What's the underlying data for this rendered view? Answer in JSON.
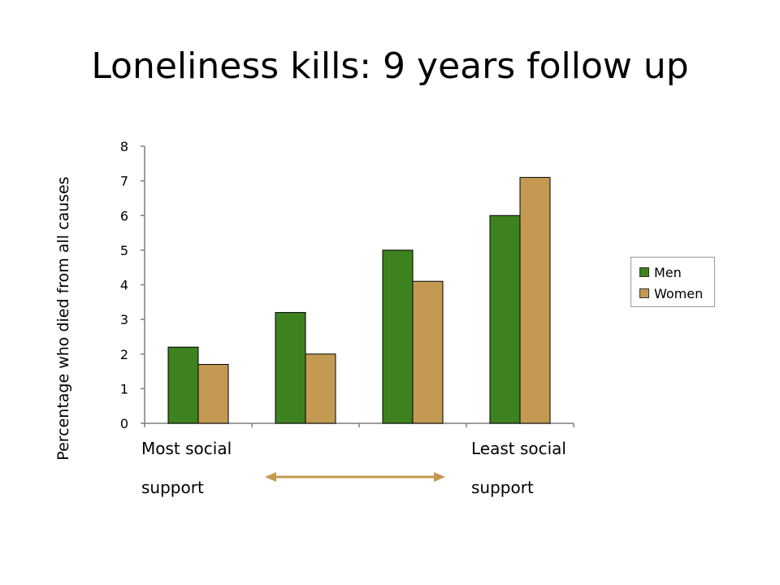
{
  "slide": {
    "title": "Loneliness kills: 9 years follow up"
  },
  "captions": {
    "left_line1": "Most social",
    "left_line2": "support",
    "right_line1": "Least social",
    "right_line2": "support"
  },
  "colors": {
    "men": "#3d821f",
    "women": "#c49a52",
    "arrow": "#c49a52",
    "axis": "#7f7f7f"
  },
  "chart_data": {
    "type": "bar",
    "title": "",
    "xlabel": "",
    "ylabel": "Percentage who died from all causes",
    "ylim": [
      0,
      8
    ],
    "yticks": [
      "0",
      "1",
      "2",
      "3",
      "4",
      "5",
      "6",
      "7",
      "8"
    ],
    "categories": [
      "",
      "",
      "",
      ""
    ],
    "series": [
      {
        "name": "Men",
        "values": [
          2.2,
          3.2,
          5.0,
          6.0
        ]
      },
      {
        "name": "Women",
        "values": [
          1.7,
          2.0,
          4.1,
          7.1
        ]
      }
    ],
    "grid": false,
    "legend": "right"
  }
}
